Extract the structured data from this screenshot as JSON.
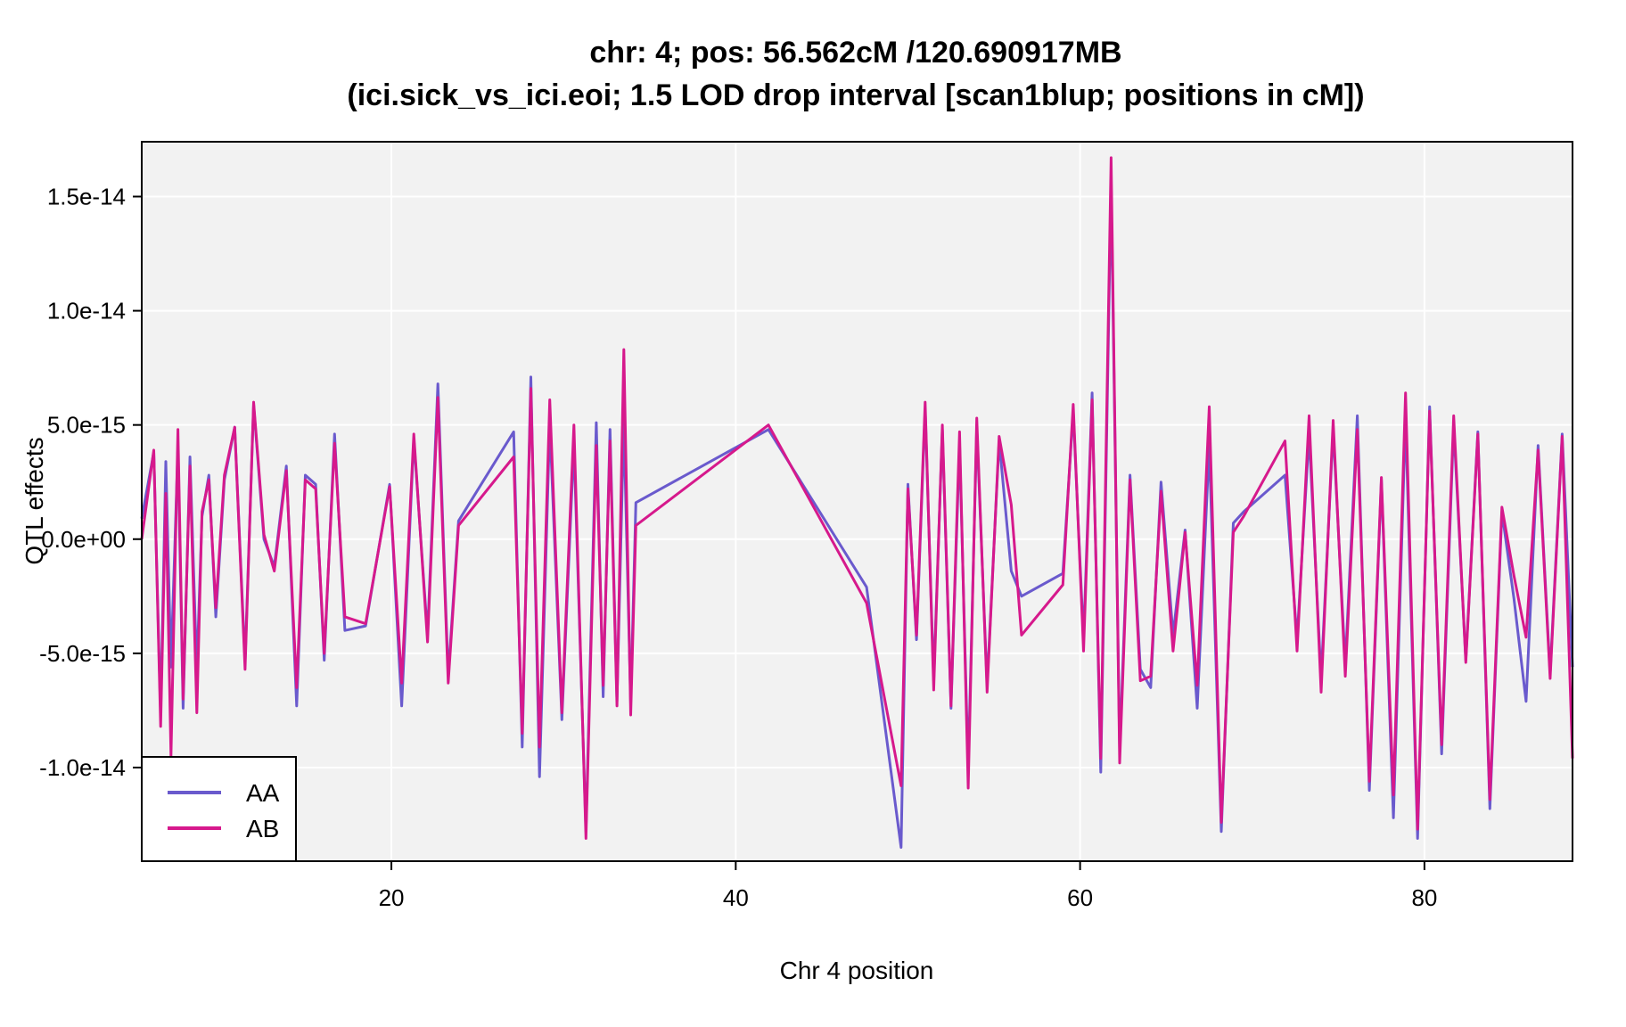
{
  "chart_data": {
    "type": "line",
    "title": "chr: 4; pos: 56.562cM /120.690917MB",
    "subtitle": "(ici.sick_vs_ici.eoi; 1.5 LOD drop interval [scan1blup; positions in cM])",
    "xlabel": "Chr 4 position",
    "ylabel": "QTL effects",
    "xlim": [
      5.5,
      88.6
    ],
    "ylim": [
      -1.41e-14,
      1.74e-14
    ],
    "x_ticks": [
      20,
      40,
      60,
      80
    ],
    "x_tick_labels": [
      "20",
      "40",
      "60",
      "80"
    ],
    "y_ticks": [
      -1e-14,
      -5e-15,
      0,
      5e-15,
      1e-14,
      1.5e-14
    ],
    "y_tick_labels": [
      "-1.0e-14",
      "-5.0e-15",
      "0.0e+00",
      "5.0e-15",
      "1.0e-14",
      "1.5e-14"
    ],
    "grid": true,
    "legend_position": "bottom-left",
    "colors": {
      "AA": "#6a5acd",
      "AB": "#d6198c",
      "panel_bg": "#f2f2f2",
      "grid": "#ffffff"
    },
    "x": [
      5.5,
      6.2,
      6.6,
      6.9,
      7.2,
      7.6,
      7.9,
      8.3,
      8.7,
      9.0,
      9.4,
      9.8,
      10.3,
      10.9,
      11.5,
      12.0,
      12.6,
      13.2,
      13.9,
      14.5,
      15.0,
      15.6,
      16.1,
      16.7,
      17.3,
      18.5,
      19.9,
      20.6,
      21.3,
      22.1,
      22.7,
      23.3,
      23.9,
      27.1,
      27.6,
      28.1,
      28.6,
      29.2,
      29.9,
      30.6,
      31.3,
      31.9,
      32.3,
      32.7,
      33.1,
      33.5,
      33.9,
      34.2,
      41.9,
      47.6,
      49.6,
      50.0,
      50.5,
      51.0,
      51.5,
      52.0,
      52.5,
      53.0,
      53.5,
      54.0,
      54.6,
      55.3,
      56.0,
      56.6,
      59.0,
      59.6,
      60.2,
      60.7,
      61.2,
      61.8,
      62.3,
      62.9,
      63.5,
      64.1,
      64.7,
      65.4,
      66.1,
      66.8,
      67.5,
      68.2,
      68.9,
      69.5,
      71.9,
      72.6,
      73.3,
      74.0,
      74.7,
      75.4,
      76.1,
      76.8,
      77.5,
      78.2,
      78.9,
      79.6,
      80.3,
      81.0,
      81.7,
      82.4,
      83.1,
      83.8,
      84.5,
      85.2,
      85.9,
      86.6,
      87.3,
      88.0,
      88.6
    ],
    "series": [
      {
        "name": "AA",
        "values": [
          9e-16,
          3.8e-15,
          -7.7e-15,
          3.4e-15,
          -5.6e-15,
          4e-15,
          -7.4e-15,
          3.6e-15,
          -5.8e-15,
          1e-15,
          2.8e-15,
          -3.4e-15,
          2.6e-15,
          4.9e-15,
          -5.4e-15,
          5.9e-15,
          0.0,
          -1.2e-15,
          3.2e-15,
          -7.3e-15,
          2.8e-15,
          2.4e-15,
          -5.3e-15,
          4.6e-15,
          -4e-15,
          -3.8e-15,
          2.4e-15,
          -7.3e-15,
          4.4e-15,
          -4.2e-15,
          6.8e-15,
          -6e-15,
          8e-16,
          4.7e-15,
          -9.1e-15,
          7.1e-15,
          -1.04e-14,
          5.1e-15,
          -7.9e-15,
          4.2e-15,
          -1.28e-14,
          5.1e-15,
          -6.9e-15,
          4.8e-15,
          -7.1e-15,
          5.2e-15,
          -7.2e-15,
          1.6e-15,
          4.8e-15,
          -2.1e-15,
          -1.35e-14,
          2.4e-15,
          -4.4e-15,
          5.7e-15,
          -6.2e-15,
          4.8e-15,
          -7.4e-15,
          4.2e-15,
          -1.01e-14,
          4.9e-15,
          -6.4e-15,
          4.3e-15,
          -1.4e-15,
          -2.5e-15,
          -1.5e-15,
          5.6e-15,
          -4.4e-15,
          6.4e-15,
          -1.02e-14,
          1.56e-14,
          -9.2e-15,
          2.8e-15,
          -5.7e-15,
          -6.5e-15,
          2.5e-15,
          -4.2e-15,
          4e-16,
          -7.4e-15,
          4.1e-15,
          -1.28e-14,
          7e-16,
          1.2e-15,
          2.8e-15,
          -4.4e-15,
          4.6e-15,
          -6.1e-15,
          4.8e-15,
          -5.5e-15,
          5.4e-15,
          -1.1e-14,
          2.6e-15,
          -1.22e-14,
          5.4e-15,
          -1.31e-14,
          5.8e-15,
          -9.4e-15,
          5e-15,
          -5.3e-15,
          4.7e-15,
          -1.18e-14,
          1.2e-15,
          -2.6e-15,
          -7.1e-15,
          4.1e-15,
          -5.9e-15,
          4.6e-15,
          -5.6e-15
        ]
      },
      {
        "name": "AB",
        "values": [
          0.0,
          3.9e-15,
          -8.2e-15,
          2e-15,
          -9.5e-15,
          4.8e-15,
          -7e-15,
          3.2e-15,
          -7.6e-15,
          1.2e-15,
          2.6e-15,
          -3e-15,
          2.8e-15,
          4.9e-15,
          -5.7e-15,
          6e-15,
          2e-16,
          -1.4e-15,
          3e-15,
          -6.5e-15,
          2.6e-15,
          2.2e-15,
          -5e-15,
          4.2e-15,
          -3.4e-15,
          -3.7e-15,
          2.3e-15,
          -6.3e-15,
          4.6e-15,
          -4.5e-15,
          6.2e-15,
          -6.3e-15,
          6e-16,
          3.6e-15,
          -8.5e-15,
          6.6e-15,
          -9.1e-15,
          6.1e-15,
          -7.6e-15,
          5e-15,
          -1.31e-14,
          4.1e-15,
          -6.4e-15,
          4.3e-15,
          -7.3e-15,
          8.3e-15,
          -7.7e-15,
          6e-16,
          5e-15,
          -2.8e-15,
          -1.08e-14,
          2.2e-15,
          -4.2e-15,
          6e-15,
          -6.6e-15,
          5e-15,
          -7.3e-15,
          4.7e-15,
          -1.09e-14,
          5.3e-15,
          -6.7e-15,
          4.5e-15,
          1.5e-15,
          -4.2e-15,
          -2e-15,
          5.9e-15,
          -4.9e-15,
          6.1e-15,
          -9.6e-15,
          1.67e-14,
          -9.8e-15,
          2.6e-15,
          -6.2e-15,
          -6e-15,
          2.1e-15,
          -4.9e-15,
          3e-16,
          -6.4e-15,
          5.8e-15,
          -1.24e-14,
          3e-16,
          1e-15,
          4.3e-15,
          -4.9e-15,
          5.4e-15,
          -6.7e-15,
          5.2e-15,
          -6e-15,
          4.8e-15,
          -1.06e-14,
          2.7e-15,
          -1.12e-14,
          6.4e-15,
          -1.27e-14,
          5.6e-15,
          -9e-15,
          5.4e-15,
          -5.4e-15,
          4.6e-15,
          -1.14e-14,
          1.4e-15,
          -1.6e-15,
          -4.3e-15,
          3.9e-15,
          -6.1e-15,
          4.5e-15,
          -9.6e-15
        ]
      }
    ]
  }
}
